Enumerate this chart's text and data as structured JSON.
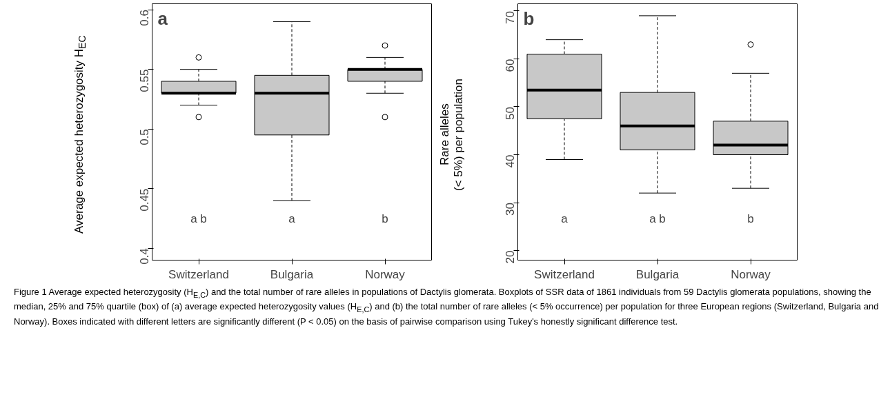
{
  "chart_data": [
    {
      "type": "box",
      "title": "a",
      "ylabel": "Average expected heterozygosity H$_{EC}$",
      "categories": [
        "Switzerland",
        "Bulgaria",
        "Norway"
      ],
      "ylim": [
        0.39,
        0.605
      ],
      "yticks": [
        0.4,
        0.45,
        0.5,
        0.55,
        0.6
      ],
      "grid": false,
      "series": [
        {
          "color": "#c8c8c8",
          "boxes": [
            {
              "low": 0.52,
              "q1": 0.53,
              "median": 0.53,
              "q3": 0.54,
              "high": 0.55,
              "outliers": [
                0.56,
                0.51
              ]
            },
            {
              "low": 0.44,
              "q1": 0.495,
              "median": 0.53,
              "q3": 0.545,
              "high": 0.59
            },
            {
              "low": 0.53,
              "q1": 0.54,
              "median": 0.55,
              "q3": 0.55,
              "high": 0.56,
              "outliers": [
                0.57,
                0.51
              ]
            }
          ]
        }
      ],
      "annotations": [
        "a b",
        "a",
        "b",
        "Figure 1 Average expected heterozygosity (H$_{E,C}$) and the total number of rare alleles in populations of Dactylis glomerata. Boxplots of SSR data of 1861 individuals from 59 Dactylis glomerata populations, showing the median, 25% and 75% quartile (box) of (a) average expected heterozygosity values (H$_{E,C}$) and (b) the total number of rare alleles (< 5% occurrence) per population for three European regions (Switzerland, Bulgaria and Norway). Boxes indicated with different letters are significantly different (P < 0.05) on the basis of pairwise comparison using Tukey's honestly significant difference test."
      ]
    },
    {
      "type": "box",
      "title": "b",
      "ylabel": "Rare alleles\n(< 5%) per population",
      "categories": [
        "Switzerland",
        "Bulgaria",
        "Norway"
      ],
      "ylim": [
        18,
        71.5
      ],
      "yticks": [
        20,
        30,
        40,
        50,
        60,
        70
      ],
      "grid": false,
      "series": [
        {
          "color": "#c8c8c8",
          "boxes": [
            {
              "low": 39,
              "q1": 47.5,
              "median": 53.5,
              "q3": 61,
              "high": 64
            },
            {
              "low": 32,
              "q1": 41,
              "median": 46,
              "q3": 53,
              "high": 69
            },
            {
              "low": 33,
              "q1": 40,
              "median": 42,
              "q3": 47,
              "high": 57,
              "outliers": [
                63
              ]
            }
          ]
        }
      ],
      "annotations": [
        "a",
        "a b",
        "b"
      ]
    }
  ]
}
